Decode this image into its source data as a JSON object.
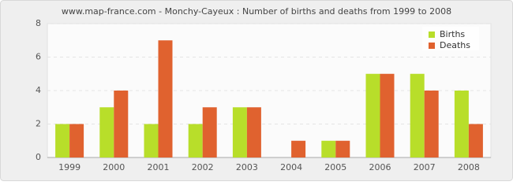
{
  "chart_data": {
    "type": "bar",
    "title": "www.map-france.com - Monchy-Cayeux : Number of births and deaths from 1999 to 2008",
    "categories": [
      "1999",
      "2000",
      "2001",
      "2002",
      "2003",
      "2004",
      "2005",
      "2006",
      "2007",
      "2008"
    ],
    "series": [
      {
        "name": "Births",
        "color": "#b8de2a",
        "values": [
          2,
          3,
          2,
          2,
          3,
          0,
          1,
          5,
          5,
          4
        ]
      },
      {
        "name": "Deaths",
        "color": "#e0622f",
        "values": [
          2,
          4,
          7,
          3,
          3,
          1,
          1,
          5,
          4,
          2
        ]
      }
    ],
    "ylim": [
      0,
      8
    ],
    "yticks": [
      0,
      2,
      4,
      6,
      8
    ],
    "grid": true,
    "legend": "top-right"
  }
}
